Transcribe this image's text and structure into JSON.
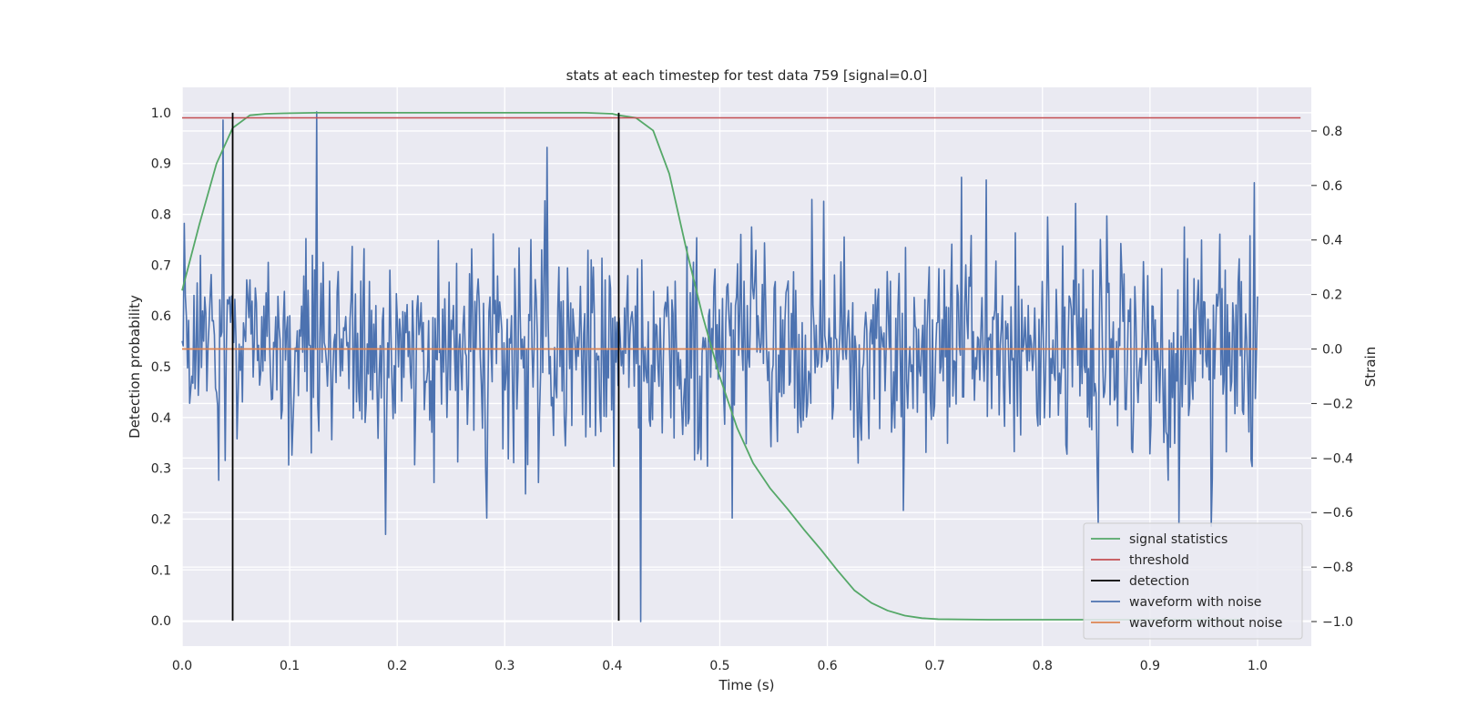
{
  "chart_data": {
    "type": "line",
    "title": "stats at each timestep for test data 759 [signal=0.0]",
    "xlabel": "Time (s)",
    "ylabel": "Detection probability",
    "y2label": "Strain",
    "xlim": [
      0.0,
      1.05
    ],
    "ylim": [
      -0.05,
      1.05
    ],
    "y2lim": [
      -1.09,
      0.96
    ],
    "xticks": [
      0.0,
      0.1,
      0.2,
      0.3,
      0.4,
      0.5,
      0.6,
      0.7,
      0.8,
      0.9,
      1.0
    ],
    "xtick_labels": [
      "0.0",
      "0.1",
      "0.2",
      "0.3",
      "0.4",
      "0.5",
      "0.6",
      "0.7",
      "0.8",
      "0.9",
      "1.0"
    ],
    "yticks": [
      0.0,
      0.1,
      0.2,
      0.3,
      0.4,
      0.5,
      0.6,
      0.7,
      0.8,
      0.9,
      1.0
    ],
    "ytick_labels": [
      "0.0",
      "0.1",
      "0.2",
      "0.3",
      "0.4",
      "0.5",
      "0.6",
      "0.7",
      "0.8",
      "0.9",
      "1.0"
    ],
    "y2ticks": [
      -1.0,
      -0.8,
      -0.6,
      -0.4,
      -0.2,
      0.0,
      0.2,
      0.4,
      0.6,
      0.8
    ],
    "y2tick_labels": [
      "−1.0",
      "−0.8",
      "−0.6",
      "−0.4",
      "−0.2",
      "0.0",
      "0.2",
      "0.4",
      "0.6",
      "0.8"
    ],
    "grid": true,
    "legend_position": "bottom-right",
    "series": [
      {
        "name": "signal statistics",
        "axis": "left",
        "color": "#55a868",
        "x": [
          0.0,
          0.016,
          0.032,
          0.047,
          0.063,
          0.078,
          0.094,
          0.125,
          0.2,
          0.3,
          0.375,
          0.4,
          0.406,
          0.422,
          0.438,
          0.453,
          0.469,
          0.484,
          0.5,
          0.516,
          0.531,
          0.547,
          0.563,
          0.578,
          0.594,
          0.609,
          0.625,
          0.641,
          0.656,
          0.672,
          0.688,
          0.703,
          0.75,
          0.8,
          0.85,
          0.9,
          0.95,
          0.984
        ],
        "y": [
          0.65,
          0.78,
          0.9,
          0.97,
          0.995,
          0.998,
          0.999,
          1.0,
          1.0,
          1.0,
          1.0,
          0.998,
          0.995,
          0.99,
          0.965,
          0.88,
          0.73,
          0.6,
          0.48,
          0.38,
          0.31,
          0.26,
          0.22,
          0.18,
          0.14,
          0.1,
          0.06,
          0.035,
          0.02,
          0.01,
          0.005,
          0.003,
          0.002,
          0.002,
          0.002,
          0.002,
          0.002,
          0.002
        ]
      },
      {
        "name": "threshold",
        "axis": "left",
        "color": "#c44e52",
        "x": [
          0.0,
          1.04
        ],
        "y": [
          0.99,
          0.99
        ]
      },
      {
        "name": "detection",
        "axis": "left",
        "color": "#000000",
        "segments": [
          {
            "x": 0.047,
            "y": [
              0.0,
              1.0
            ]
          },
          {
            "x": 0.406,
            "y": [
              0.0,
              1.0
            ]
          }
        ]
      },
      {
        "name": "waveform with noise",
        "axis": "right",
        "color": "#4c72b0",
        "sample_count": 1000,
        "x_range": [
          0.0,
          1.0
        ],
        "std": 0.2,
        "peaks": [
          {
            "x": 0.038,
            "y": 0.84
          },
          {
            "x": 0.125,
            "y": 0.87
          },
          {
            "x": 0.339,
            "y": 0.74
          },
          {
            "x": 0.189,
            "y": -0.68
          },
          {
            "x": 0.426,
            "y": -1.0
          },
          {
            "x": 0.725,
            "y": 0.63
          },
          {
            "x": 0.997,
            "y": 0.61
          },
          {
            "x": 0.852,
            "y": -0.64
          },
          {
            "x": 0.927,
            "y": -0.64
          },
          {
            "x": 0.957,
            "y": -0.65
          }
        ]
      },
      {
        "name": "waveform without noise",
        "axis": "right",
        "color": "#dd8452",
        "x": [
          0.0,
          1.0
        ],
        "y": [
          0.0,
          0.0
        ]
      }
    ]
  }
}
